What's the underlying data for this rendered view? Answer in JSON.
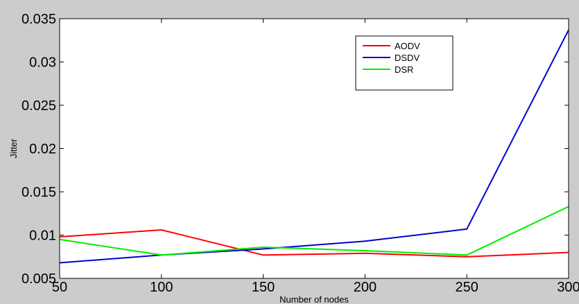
{
  "chart_data": {
    "type": "line",
    "title": "",
    "xlabel": "Number of nodes",
    "ylabel": "Jitter",
    "x": [
      50,
      100,
      150,
      200,
      250,
      300
    ],
    "xlim": [
      50,
      300
    ],
    "ylim": [
      0.005,
      0.035
    ],
    "xticks": [
      50,
      100,
      150,
      200,
      250,
      300
    ],
    "xtick_labels": [
      "50",
      "100",
      "150",
      "200",
      "250",
      "300"
    ],
    "yticks": [
      0.005,
      0.01,
      0.015,
      0.02,
      0.025,
      0.03,
      0.035
    ],
    "ytick_labels": [
      "0.005",
      "0.01",
      "0.015",
      "0.02",
      "0.025",
      "0.03",
      "0.035"
    ],
    "grid": false,
    "legend_position": "top-right",
    "series": [
      {
        "name": "AODV",
        "color": "#ff0000",
        "values": [
          0.0098,
          0.0106,
          0.0077,
          0.0079,
          0.0075,
          0.008
        ]
      },
      {
        "name": "DSDV",
        "color": "#0000cc",
        "values": [
          0.0068,
          0.0077,
          0.0084,
          0.0093,
          0.0107,
          0.0337
        ]
      },
      {
        "name": "DSR",
        "color": "#00ee00",
        "values": [
          0.0095,
          0.0077,
          0.0086,
          0.0082,
          0.0077,
          0.0133
        ]
      }
    ]
  }
}
